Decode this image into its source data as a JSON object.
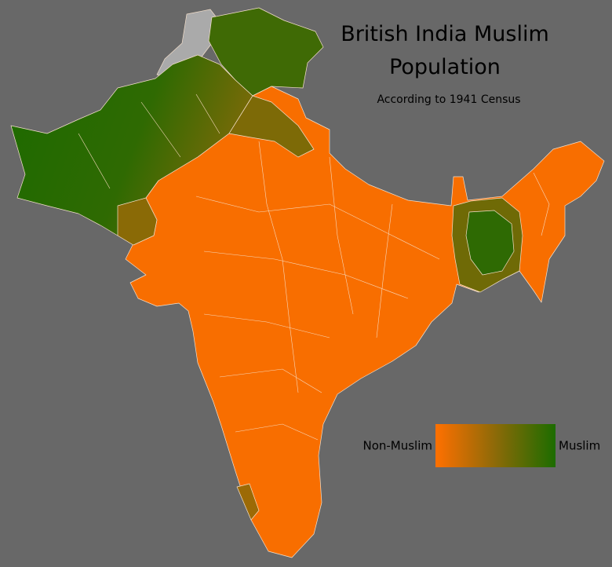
{
  "title_lines": [
    "British India Muslim",
    "Population"
  ],
  "subtitle": "According to 1941 Census",
  "legend": {
    "low_label": "Non-Muslim",
    "high_label": "Muslim"
  }
}
